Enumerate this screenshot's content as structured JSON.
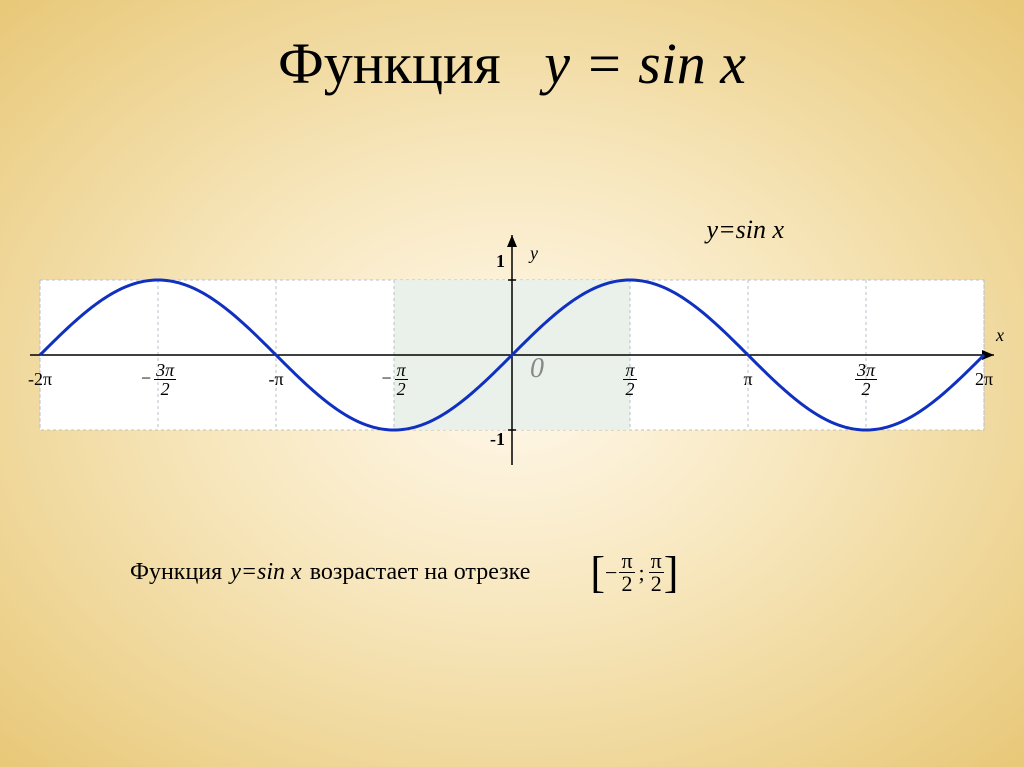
{
  "title": {
    "word": "Функция",
    "formula_var": "y",
    "formula_eq": " = ",
    "formula_fn": "sin x"
  },
  "chart": {
    "type": "line",
    "function": "sin",
    "xlim": [
      -6.2832,
      6.2832
    ],
    "ylim": [
      -1.2,
      1.2
    ],
    "highlight_region": [
      -1.5708,
      1.5708
    ],
    "axis_x_label": "x",
    "axis_y_label": "y",
    "origin_label": "0",
    "y_tick_top": "1",
    "y_tick_bottom": "-1",
    "curve_color": "#1030c0",
    "curve_width": 3,
    "grid_color": "#b8c0c8",
    "highlight_fill": "#e8f0e8",
    "background_color": "#ffffff",
    "axis_color": "#000000",
    "curve_label": "y=sin x",
    "x_ticks": [
      {
        "pos": -6.2832,
        "label_plain": "-2π"
      },
      {
        "pos": -4.7124,
        "label_frac_num": "3π",
        "label_frac_den": "2",
        "neg": true
      },
      {
        "pos": -3.1416,
        "label_plain": "-π"
      },
      {
        "pos": -1.5708,
        "label_frac_num": "π",
        "label_frac_den": "2",
        "neg": true
      },
      {
        "pos": 1.5708,
        "label_frac_num": "π",
        "label_frac_den": "2"
      },
      {
        "pos": 3.1416,
        "label_plain": "π"
      },
      {
        "pos": 4.7124,
        "label_frac_num": "3π",
        "label_frac_den": "2"
      },
      {
        "pos": 6.2832,
        "label_plain": "2π"
      }
    ]
  },
  "caption": {
    "pre": "Функция",
    "formula": "y=sin x",
    "post": "возрастает на отрезке",
    "interval_left_num": "π",
    "interval_left_den": "2",
    "interval_right_num": "π",
    "interval_right_den": "2",
    "interval_sep": ";"
  }
}
